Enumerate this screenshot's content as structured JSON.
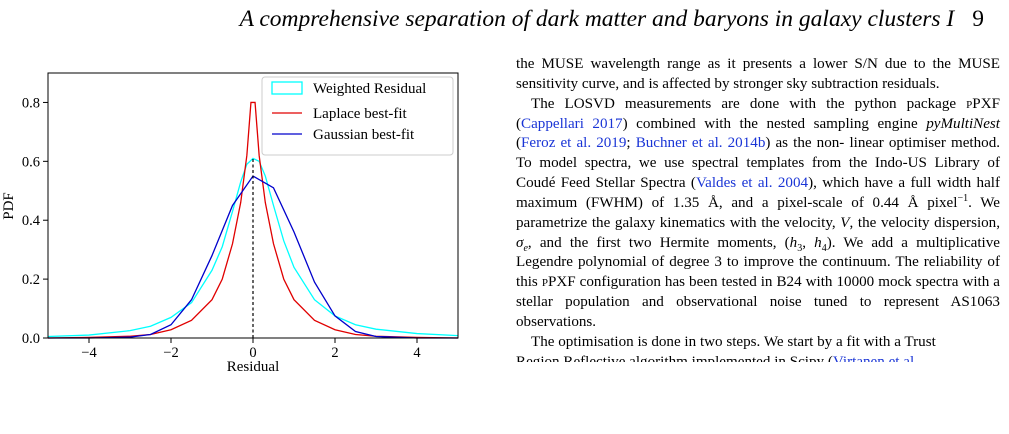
{
  "header": {
    "running_title": "A comprehensive separation of dark matter and baryons in galaxy clusters I",
    "page_number": "9"
  },
  "chart_data": {
    "type": "line",
    "xlabel": "Residual",
    "ylabel": "PDF",
    "xlim": [
      -5,
      5
    ],
    "ylim": [
      0,
      0.9
    ],
    "xticks": [
      "−4",
      "−2",
      "0",
      "2",
      "4"
    ],
    "yticks": [
      "0.0",
      "0.2",
      "0.4",
      "0.6",
      "0.8"
    ],
    "legend_position": "top-right",
    "grid": false,
    "vertical_marker_x": 0,
    "series": [
      {
        "name": "Weighted Residual",
        "color": "#00ffff",
        "x": [
          -5,
          -4,
          -3,
          -2.5,
          -2,
          -1.5,
          -1,
          -0.75,
          -0.5,
          -0.3,
          -0.15,
          0,
          0.15,
          0.3,
          0.5,
          0.75,
          1,
          1.5,
          2,
          2.5,
          3,
          4,
          5
        ],
        "y": [
          0.005,
          0.01,
          0.025,
          0.04,
          0.07,
          0.12,
          0.23,
          0.31,
          0.43,
          0.53,
          0.59,
          0.61,
          0.6,
          0.55,
          0.45,
          0.33,
          0.24,
          0.13,
          0.075,
          0.045,
          0.03,
          0.015,
          0.008
        ]
      },
      {
        "name": "Laplace best-fit",
        "color": "#e00000",
        "x": [
          -5,
          -4,
          -3,
          -2.5,
          -2,
          -1.5,
          -1,
          -0.75,
          -0.5,
          -0.3,
          -0.15,
          -0.05,
          0.05,
          0.15,
          0.3,
          0.5,
          0.75,
          1,
          1.5,
          2,
          2.5,
          3,
          4,
          5
        ],
        "y": [
          0.0,
          0.002,
          0.006,
          0.012,
          0.028,
          0.06,
          0.13,
          0.2,
          0.32,
          0.46,
          0.62,
          0.8,
          0.8,
          0.62,
          0.46,
          0.32,
          0.2,
          0.13,
          0.06,
          0.028,
          0.012,
          0.006,
          0.002,
          0.0
        ]
      },
      {
        "name": "Gaussian best-fit",
        "color": "#0000cc",
        "x": [
          -5,
          -4,
          -3,
          -2.5,
          -2,
          -1.5,
          -1,
          -0.5,
          0,
          0.5,
          1,
          1.5,
          2,
          2.5,
          3,
          4,
          5
        ],
        "y": [
          0.0,
          0.0,
          0.003,
          0.012,
          0.045,
          0.13,
          0.28,
          0.45,
          0.55,
          0.51,
          0.36,
          0.19,
          0.075,
          0.022,
          0.005,
          0.0,
          0.0
        ]
      }
    ]
  },
  "paragraphs": {
    "p1": {
      "line1": "the MUSE wavelength range as it presents a lower S/N due to the",
      "line2": "MUSE sensitivity curve, and is affected by stronger sky subtraction",
      "line3": "residuals."
    },
    "p2": {
      "l1": "The LOSVD measurements are done with the python package",
      "l2_sc": "p",
      "l2_a": "PXF (",
      "l2_cite": "Cappellari 2017",
      "l2_b": ") combined with the nested sampling engine",
      "l3_it": "pyMultiNest",
      "l3_a": " (",
      "l3_cite1": "Feroz et al. 2019",
      "l3_b": "; ",
      "l3_cite2": "Buchner et al. 2014b",
      "l3_c": ") as the non-",
      "l4": "linear optimiser method. To model spectra, we use spectral templates",
      "l5_a": "from the Indo-US Library of Coudé Feed Stellar Spectra (",
      "l5_cite": "Valdes",
      "l6_cite": "et al. 2004",
      "l6_a": "), which have a full width half maximum (FWHM) of",
      "l7_a": "1.35 Å, and a pixel-scale of 0.44 Å pixel",
      "l7_sup": "−1",
      "l7_b": ". We parametrize the",
      "l8_a": "galaxy kinematics with the velocity, ",
      "l8_v": "V",
      "l8_b": ", the velocity dispersion, ",
      "l8_sigma": "σ",
      "l8_sub": "e",
      "l8_c": ",",
      "l9_a": "and the first two Hermite moments, (",
      "l9_h3": "h",
      "l9_h3sub": "3",
      "l9_mid": ", ",
      "l9_h4": "h",
      "l9_h4sub": "4",
      "l9_b": "). We add a multiplicative",
      "l10": "Legendre polynomial of degree 3 to improve the continuum. The",
      "l11_a": "reliability of this ",
      "l11_sc": "p",
      "l11_b": "PXF configuration has been tested in B24 with",
      "l12": "10000 mock spectra with a stellar population and observational noise",
      "l13": "tuned to represent AS1063 observations."
    },
    "p3": {
      "l1": "The optimisation is done in two steps. We start by a fit with a Trust",
      "l2_a": "Region Reflective algorithm implemented in Scipy (",
      "l2_cite": "Virtanen et al."
    }
  }
}
